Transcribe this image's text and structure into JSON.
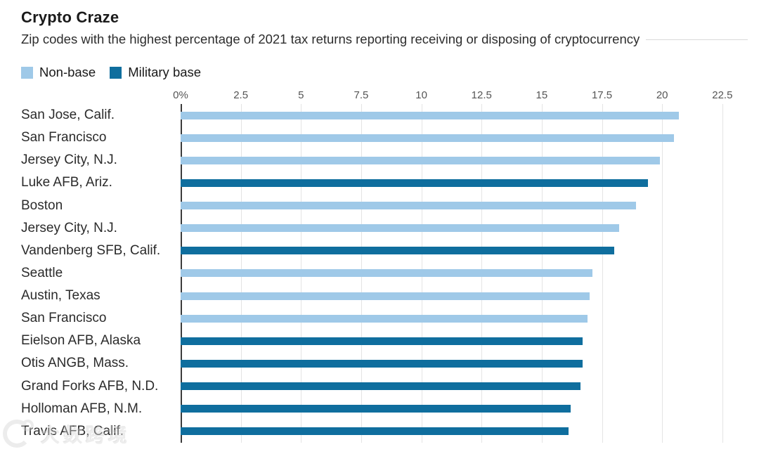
{
  "header": {
    "title": "Crypto Craze",
    "subtitle": "Zip codes with the highest percentage of 2021 tax returns reporting receiving or disposing of cryptocurrency"
  },
  "legend": [
    {
      "label": "Non-base",
      "color": "#9FC9E8"
    },
    {
      "label": "Military base",
      "color": "#0F6E9E"
    }
  ],
  "colors": {
    "non_base": "#9FC9E8",
    "military": "#0F6E9E",
    "axis_line": "#3C3C3C",
    "gridline": "#E4E4E4",
    "title_text": "#1A1A1A",
    "tick_text": "#555555"
  },
  "watermark": {
    "text": "大数跨境"
  },
  "chart_data": {
    "type": "bar",
    "orientation": "horizontal",
    "title": "Crypto Craze",
    "subtitle": "Zip codes with the highest percentage of 2021 tax returns reporting receiving or disposing of cryptocurrency",
    "xlabel": "",
    "ylabel": "",
    "xlim": [
      0,
      22.5
    ],
    "xticks": [
      0,
      2.5,
      5,
      7.5,
      10,
      12.5,
      15,
      17.5,
      20,
      22.5
    ],
    "xtick_labels": [
      "0%",
      "2.5",
      "5",
      "7.5",
      "10",
      "12.5",
      "15",
      "17.5",
      "20",
      "22.5"
    ],
    "grid": true,
    "legend_position": "top-left",
    "series_legend": [
      "Non-base",
      "Military base"
    ],
    "unit": "percent",
    "bars": [
      {
        "label": "San Jose, Calif.",
        "value": 20.7,
        "group": "non-base"
      },
      {
        "label": "San Francisco",
        "value": 20.5,
        "group": "non-base"
      },
      {
        "label": "Jersey City, N.J.",
        "value": 19.9,
        "group": "non-base"
      },
      {
        "label": "Luke AFB, Ariz.",
        "value": 19.4,
        "group": "military"
      },
      {
        "label": "Boston",
        "value": 18.9,
        "group": "non-base"
      },
      {
        "label": "Jersey City, N.J.",
        "value": 18.2,
        "group": "non-base"
      },
      {
        "label": "Vandenberg SFB, Calif.",
        "value": 18.0,
        "group": "military"
      },
      {
        "label": "Seattle",
        "value": 17.1,
        "group": "non-base"
      },
      {
        "label": "Austin, Texas",
        "value": 17.0,
        "group": "non-base"
      },
      {
        "label": "San Francisco",
        "value": 16.9,
        "group": "non-base"
      },
      {
        "label": "Eielson AFB, Alaska",
        "value": 16.7,
        "group": "military"
      },
      {
        "label": "Otis ANGB, Mass.",
        "value": 16.7,
        "group": "military"
      },
      {
        "label": "Grand Forks AFB, N.D.",
        "value": 16.6,
        "group": "military"
      },
      {
        "label": "Holloman AFB, N.M.",
        "value": 16.2,
        "group": "military"
      },
      {
        "label": "Travis AFB, Calif.",
        "value": 16.1,
        "group": "military"
      }
    ]
  }
}
